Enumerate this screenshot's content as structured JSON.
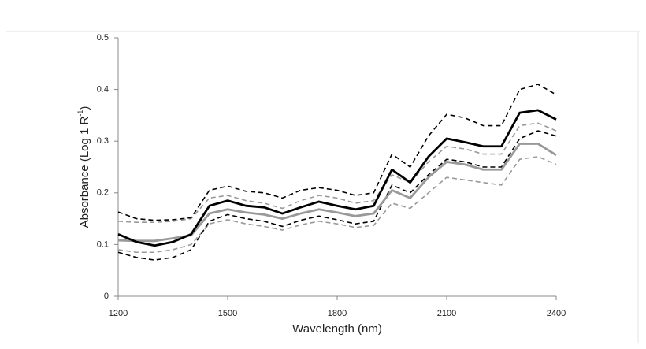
{
  "chart_data": {
    "type": "line",
    "xlabel": "Wavelength (nm)",
    "ylabel": "Absorbance (Log 1 R",
    "ylabel_superscript": "-1",
    "ylabel_end": ")",
    "x": [
      1200,
      1250,
      1300,
      1350,
      1400,
      1450,
      1500,
      1550,
      1600,
      1650,
      1700,
      1750,
      1800,
      1850,
      1900,
      1950,
      2000,
      2050,
      2100,
      2150,
      2200,
      2250,
      2300,
      2350,
      2400
    ],
    "series": [
      {
        "color": "#999999",
        "dashed": true,
        "values": [
          0.09,
          0.085,
          0.085,
          0.09,
          0.1,
          0.14,
          0.148,
          0.14,
          0.135,
          0.128,
          0.138,
          0.145,
          0.14,
          0.133,
          0.137,
          0.18,
          0.17,
          0.2,
          0.23,
          0.225,
          0.22,
          0.215,
          0.265,
          0.27,
          0.255
        ]
      },
      {
        "color": "#999999",
        "dashed": true,
        "values": [
          0.145,
          0.143,
          0.143,
          0.145,
          0.15,
          0.19,
          0.195,
          0.185,
          0.18,
          0.17,
          0.185,
          0.195,
          0.19,
          0.18,
          0.185,
          0.235,
          0.22,
          0.26,
          0.29,
          0.285,
          0.275,
          0.275,
          0.33,
          0.335,
          0.32
        ]
      },
      {
        "color": "#000000",
        "dashed": true,
        "values": [
          0.085,
          0.075,
          0.07,
          0.075,
          0.09,
          0.145,
          0.158,
          0.15,
          0.145,
          0.135,
          0.147,
          0.155,
          0.148,
          0.14,
          0.145,
          0.215,
          0.2,
          0.235,
          0.265,
          0.26,
          0.25,
          0.25,
          0.305,
          0.32,
          0.31
        ]
      },
      {
        "color": "#000000",
        "dashed": true,
        "values": [
          0.163,
          0.15,
          0.147,
          0.148,
          0.152,
          0.205,
          0.213,
          0.203,
          0.2,
          0.19,
          0.205,
          0.21,
          0.205,
          0.195,
          0.2,
          0.275,
          0.25,
          0.31,
          0.352,
          0.345,
          0.33,
          0.33,
          0.4,
          0.41,
          0.39
        ]
      },
      {
        "color": "#999999",
        "dashed": false,
        "values": [
          0.108,
          0.107,
          0.107,
          0.112,
          0.118,
          0.16,
          0.168,
          0.162,
          0.158,
          0.15,
          0.16,
          0.168,
          0.162,
          0.155,
          0.16,
          0.205,
          0.19,
          0.23,
          0.26,
          0.255,
          0.245,
          0.245,
          0.295,
          0.295,
          0.273
        ]
      },
      {
        "color": "#000000",
        "dashed": false,
        "values": [
          0.12,
          0.105,
          0.098,
          0.105,
          0.12,
          0.175,
          0.185,
          0.175,
          0.172,
          0.16,
          0.172,
          0.183,
          0.175,
          0.168,
          0.175,
          0.245,
          0.22,
          0.27,
          0.305,
          0.298,
          0.29,
          0.29,
          0.355,
          0.36,
          0.342
        ]
      }
    ],
    "xlim": [
      1200,
      2400
    ],
    "xticks": [
      1200,
      1500,
      1800,
      2100,
      2400
    ],
    "ylim": [
      0,
      0.5
    ],
    "yticks": [
      0,
      0.1,
      0.2,
      0.3,
      0.4,
      0.5
    ],
    "grid": false
  }
}
